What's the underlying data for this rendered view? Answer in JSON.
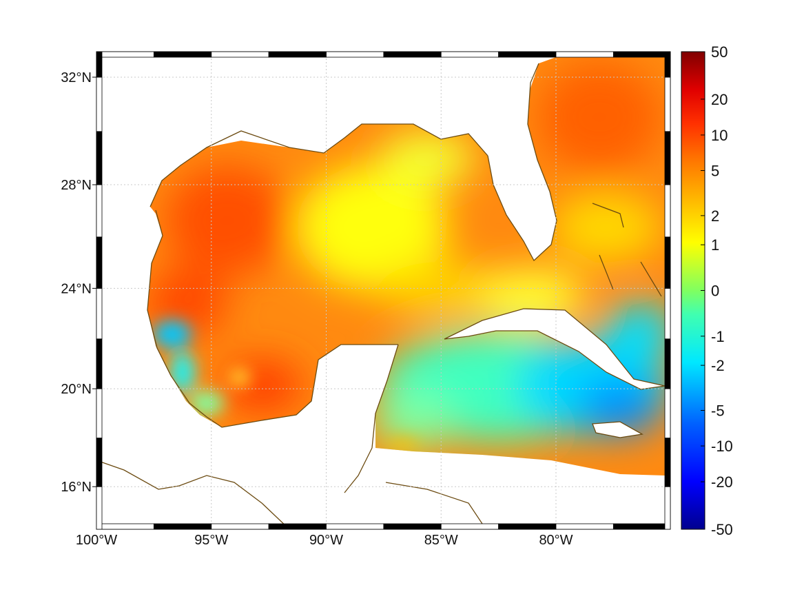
{
  "map": {
    "lon_range": [
      -100,
      -75
    ],
    "lat_range": [
      14.2,
      33
    ],
    "lon_ticks": [
      {
        "value": -100,
        "label": "100°W"
      },
      {
        "value": -95,
        "label": "95°W"
      },
      {
        "value": -90,
        "label": "90°W"
      },
      {
        "value": -85,
        "label": "85°W"
      },
      {
        "value": -80,
        "label": "80°W"
      }
    ],
    "lat_ticks": [
      {
        "value": 32,
        "label": "32°N"
      },
      {
        "value": 28,
        "label": "28°N"
      },
      {
        "value": 24,
        "label": "24°N"
      },
      {
        "value": 20,
        "label": "20°N"
      },
      {
        "value": 16,
        "label": "16°N"
      }
    ],
    "coast_color": "#6b4a10",
    "grid": true
  },
  "colorbar": {
    "scale": "asinh",
    "range": [
      -50,
      50
    ],
    "ticks": [
      {
        "value": 50,
        "label": "50"
      },
      {
        "value": 20,
        "label": "20"
      },
      {
        "value": 10,
        "label": "10"
      },
      {
        "value": 5,
        "label": "5"
      },
      {
        "value": 2,
        "label": "2"
      },
      {
        "value": 1,
        "label": "1"
      },
      {
        "value": 0,
        "label": "0"
      },
      {
        "value": -1,
        "label": "-1"
      },
      {
        "value": -2,
        "label": "-2"
      },
      {
        "value": -5,
        "label": "-5"
      },
      {
        "value": -10,
        "label": "-10"
      },
      {
        "value": -20,
        "label": "-20"
      },
      {
        "value": -50,
        "label": "-50"
      }
    ],
    "colormap": [
      "#00008f",
      "#0000ff",
      "#0080ff",
      "#00ffff",
      "#80ff80",
      "#ffff00",
      "#ff8000",
      "#ff0000",
      "#800000"
    ]
  }
}
